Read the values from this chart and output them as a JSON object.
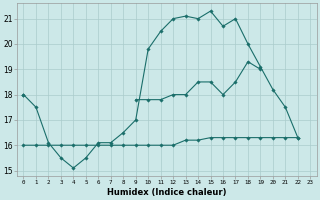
{
  "xlabel": "Humidex (Indice chaleur)",
  "bg_color": "#cce8e8",
  "grid_color": "#aacccc",
  "line_color": "#1a6e6a",
  "xlim": [
    -0.5,
    23.5
  ],
  "ylim": [
    14.8,
    21.6
  ],
  "xticks": [
    0,
    1,
    2,
    3,
    4,
    5,
    6,
    7,
    8,
    9,
    10,
    11,
    12,
    13,
    14,
    15,
    16,
    17,
    18,
    19,
    20,
    21,
    22,
    23
  ],
  "yticks": [
    15,
    16,
    17,
    18,
    19,
    20,
    21
  ],
  "line1_y": [
    18.0,
    17.5,
    16.1,
    15.5,
    15.1,
    15.5,
    16.1,
    16.1,
    16.5,
    17.0,
    19.8,
    20.5,
    21.0,
    21.1,
    21.0,
    21.3,
    20.7,
    21.0,
    20.0,
    19.1,
    18.2,
    17.5,
    16.3,
    null
  ],
  "line2_y": [
    18.0,
    null,
    null,
    null,
    null,
    null,
    null,
    null,
    null,
    17.8,
    17.8,
    17.8,
    18.0,
    18.0,
    18.5,
    18.5,
    18.0,
    18.5,
    19.3,
    19.0,
    null,
    null,
    null,
    null
  ],
  "line3_y": [
    16.0,
    16.0,
    16.0,
    16.0,
    16.0,
    16.0,
    16.0,
    16.0,
    16.0,
    16.0,
    16.0,
    16.0,
    16.0,
    16.2,
    16.2,
    16.3,
    16.3,
    16.3,
    16.3,
    16.3,
    16.3,
    16.3,
    16.3,
    null
  ]
}
